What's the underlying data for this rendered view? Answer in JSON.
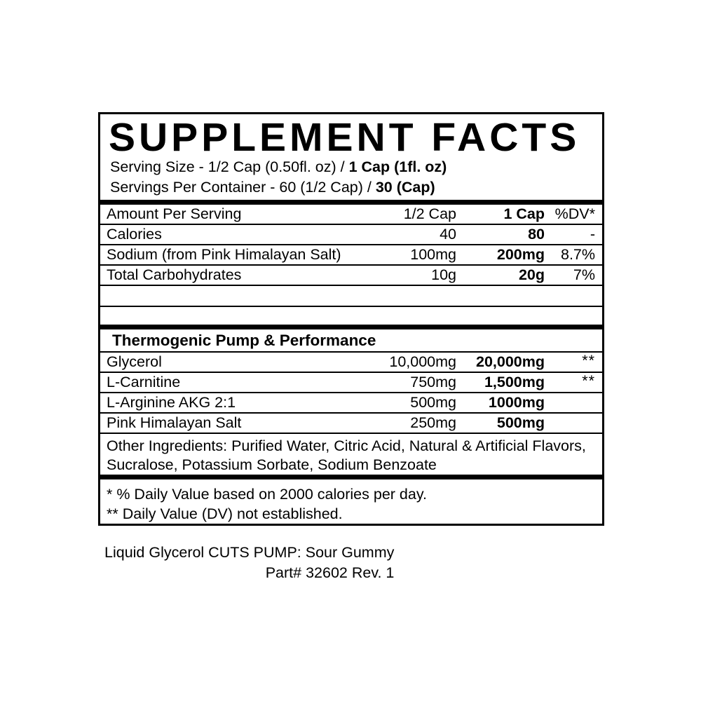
{
  "colors": {
    "text": "#000000",
    "background": "#ffffff"
  },
  "label": {
    "title": "SUPPLEMENT FACTS",
    "serving_size": {
      "prefix": "Serving Size - 1/2 Cap (0.50fl. oz) / ",
      "bold": "1 Cap (1fl. oz)"
    },
    "servings_per_container": {
      "prefix": "Servings Per Container - 60 (1/2 Cap) / ",
      "bold": "30 (Cap)"
    },
    "columns": {
      "name": "Amount Per Serving",
      "half": "1/2 Cap",
      "full": "1 Cap",
      "dv": "%DV*"
    },
    "main_rows": [
      {
        "name": "Calories",
        "half": "40",
        "full": "80",
        "dv": "-"
      },
      {
        "name": "Sodium (from Pink Himalayan Salt)",
        "half": "100mg",
        "full": "200mg",
        "dv": "8.7%"
      },
      {
        "name": "Total Carbohydrates",
        "half": "10g",
        "full": "20g",
        "dv": "7%"
      }
    ],
    "section": {
      "heading": "Thermogenic Pump & Performance",
      "rows": [
        {
          "name": "Glycerol",
          "half": "10,000mg",
          "full": "20,000mg",
          "dv": "**"
        },
        {
          "name": "L-Carnitine",
          "half": "750mg",
          "full": "1,500mg",
          "dv": "**"
        },
        {
          "name": "L-Arginine AKG 2:1",
          "half": "500mg",
          "full": "1000mg",
          "dv": ""
        },
        {
          "name": "Pink Himalayan Salt",
          "half": "250mg",
          "full": "500mg",
          "dv": ""
        }
      ]
    },
    "other_ingredients": "Other Ingredients: Purified Water, Citric Acid, Natural & Artificial Flavors, Sucralose, Potassium Sorbate, Sodium Benzoate",
    "footnotes": [
      "* % Daily Value based on 2000 calories per day.",
      "** Daily Value (DV) not established."
    ]
  },
  "footer": {
    "product_line": "Liquid Glycerol CUTS PUMP: Sour Gummy",
    "part_line": "Part# 32602 Rev. 1"
  }
}
